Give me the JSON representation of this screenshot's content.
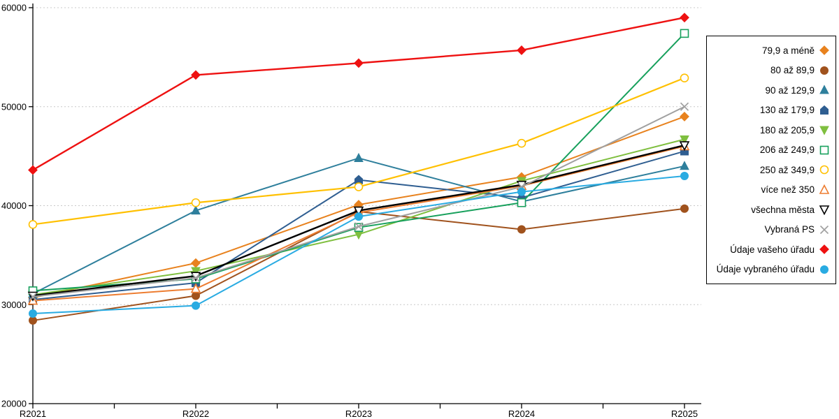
{
  "chart_data": {
    "type": "line",
    "title": "",
    "xlabel": "",
    "ylabel": "",
    "categories": [
      "R2021",
      "R2022",
      "R2023",
      "R2024",
      "R2025"
    ],
    "y_ticks": [
      20000,
      30000,
      40000,
      50000,
      60000
    ],
    "ylim": [
      20000,
      60000
    ],
    "grid": "horizontal-dashed",
    "gridline_color": "#C8C8C8",
    "axis_color": "#000000",
    "legend_position": "right",
    "series": [
      {
        "name": "79,9 a méně",
        "marker": "diamond",
        "fill": "solid",
        "color": "#E8821E",
        "width": 2,
        "values": [
          30700,
          34200,
          40100,
          42900,
          49000
        ]
      },
      {
        "name": "80 až 89,9",
        "marker": "circle",
        "fill": "solid",
        "color": "#A0521D",
        "width": 2,
        "values": [
          28400,
          30900,
          39400,
          37600,
          39700
        ]
      },
      {
        "name": "90 až 129,9",
        "marker": "triangle-up",
        "fill": "solid",
        "color": "#2E7F9C",
        "width": 2,
        "values": [
          31100,
          39500,
          44800,
          40400,
          44000
        ]
      },
      {
        "name": "130 až 179,9",
        "marker": "pentagon",
        "fill": "solid",
        "color": "#2F5E91",
        "width": 2,
        "values": [
          30500,
          32200,
          42600,
          40800,
          45500
        ]
      },
      {
        "name": "180 až 205,9",
        "marker": "triangle-down",
        "fill": "solid",
        "color": "#7FBF3F",
        "width": 2,
        "values": [
          31000,
          33400,
          37100,
          42500,
          46700
        ]
      },
      {
        "name": "206 až 249,9",
        "marker": "square",
        "fill": "open",
        "color": "#17A05C",
        "width": 2,
        "values": [
          31400,
          32600,
          37800,
          40300,
          57400
        ]
      },
      {
        "name": "250 až 349,9",
        "marker": "circle",
        "fill": "open",
        "color": "#FFC000",
        "width": 2.2,
        "values": [
          38100,
          40300,
          41900,
          46300,
          52900
        ]
      },
      {
        "name": "více než 350",
        "marker": "triangle-up",
        "fill": "open",
        "color": "#ED7D31",
        "width": 2,
        "values": [
          30400,
          31600,
          39300,
          42000,
          46000
        ]
      },
      {
        "name": "všechna města",
        "marker": "triangle-down",
        "fill": "open",
        "color": "#000000",
        "width": 2.4,
        "values": [
          30900,
          32900,
          39500,
          42100,
          46100
        ]
      },
      {
        "name": "Vybraná PS",
        "marker": "x",
        "fill": "open",
        "color": "#A0A0A0",
        "width": 2,
        "values": [
          30800,
          32700,
          37900,
          41900,
          50000
        ]
      },
      {
        "name": "Údaje vašeho úřadu",
        "marker": "diamond",
        "fill": "solid",
        "color": "#EE1111",
        "width": 2.4,
        "values": [
          43600,
          53200,
          54400,
          55700,
          59000
        ]
      },
      {
        "name": "Údaje vybraného úřadu",
        "marker": "circle",
        "fill": "solid",
        "color": "#29ABE2",
        "width": 2,
        "values": [
          29100,
          29900,
          38900,
          41400,
          43000
        ]
      }
    ]
  }
}
